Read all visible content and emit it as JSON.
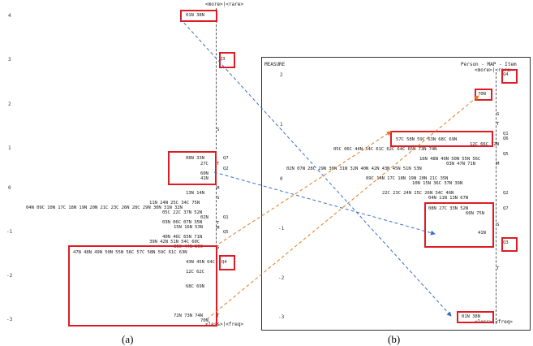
{
  "colors": {
    "box": "#e01b24",
    "blue_arrow": "#3a6fc4",
    "orange_arrow": "#e07b22"
  },
  "panel_a": {
    "label": "(a)",
    "header": "<more>|<rare>",
    "footer": "<less>|<freq>",
    "y_ticks": [
      "4",
      "3",
      "2",
      "1",
      "0",
      "-1",
      "-2",
      "-3"
    ],
    "persons": [
      "01N 38N",
      "08N 33N",
      "27C",
      "60N",
      "41N",
      "13N 14N",
      "11N 24N 25C 34C 75N",
      "04N 09C 10N 17C 18N 19N 20N 21C 23C 26N 28C 29N 30N 31N 32N",
      "05C 22C 37N 52N",
      "02N",
      "03N 06C 07N 35N",
      "15N 16N 53N",
      "40N 46C 65N 71N",
      "39N 42N 51N 54C 60C",
      "36C 44N 50C",
      "47N 48N 49N 50N 55N 56C 57C 58N 59C 61C 63N",
      "43N 45N 64C",
      "12C 62C",
      "68C 69N",
      "72N 73N 74N",
      "70N"
    ],
    "items": [
      "Q3",
      "Q7",
      "Q2",
      "Q1",
      "Q5",
      "Q4",
      "Q6"
    ],
    "axis_letters": [
      "S",
      "T",
      "M",
      "S",
      "T",
      "M",
      "S",
      "T"
    ]
  },
  "panel_b": {
    "label": "(b)",
    "title_left": "MEASURE",
    "title_right": "Person - MAP - Item",
    "header": "<more>|<rare>",
    "footer": "<less>|<freq>",
    "y_ticks": [
      "2",
      "1",
      "0",
      "-1",
      "-2",
      "-3"
    ],
    "persons": [
      "70N",
      "57C 58N 59C 63N 68C 69N",
      "12C 66C 72N",
      "05C 06C 44N 54C 61C 62C 64C 65N 73N 74N",
      "16N 48N 49N 50N 55N 56C",
      "03N 47N 71N",
      "02N 07N 28C 29N 30N 31N 32N 40N 42N 43N 45N 51N 53N",
      "09C 14N 17C 18N 19N 20N 21C 35N",
      "10N 15N 36C 37N 39N",
      "22C 23C 24N 25C 26N 34C 46N",
      "04N 11N 13N 67N",
      "08N 27C 33N 52N",
      "66N 75N",
      "41N",
      "01N 38N"
    ],
    "items": [
      "Q4",
      "Q1",
      "Q6",
      "Q5",
      "Q2",
      "Q7",
      "Q3"
    ],
    "axis_letters": [
      "S",
      "T",
      "M",
      "S",
      "T"
    ]
  }
}
